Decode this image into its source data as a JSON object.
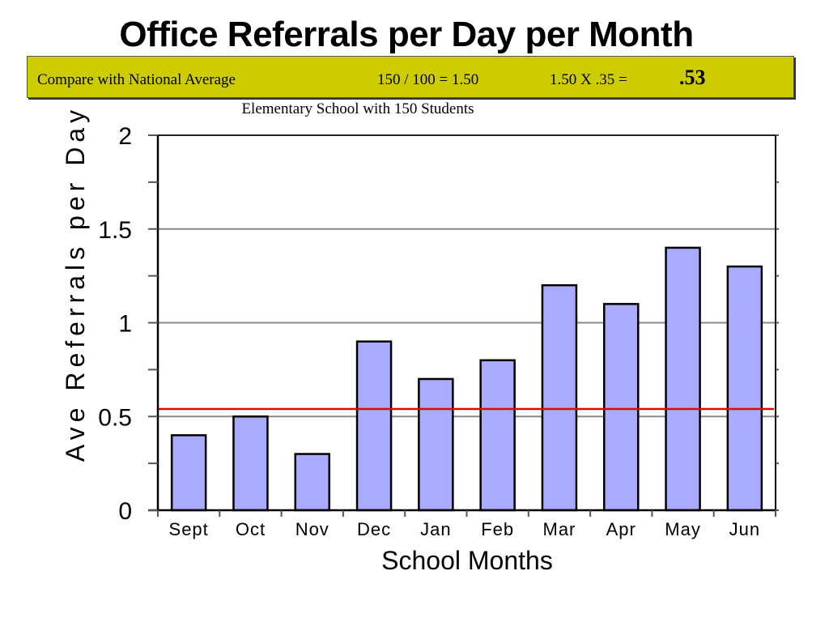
{
  "slide": {
    "title": "Office Referrals per Day per Month"
  },
  "comparison": {
    "label": "Compare with National Average",
    "calc_ratio": "150 / 100  = 1.50",
    "calc_product": "1.50 X  .35  =",
    "result": ".53",
    "box_color": "#cccc00"
  },
  "chart_data": {
    "type": "bar",
    "title": "",
    "subtitle": "Elementary School with 150 Students",
    "xlabel": "School Months",
    "ylabel": "Ave Referrals per Day",
    "categories": [
      "Sept",
      "Oct",
      "Nov",
      "Dec",
      "Jan",
      "Feb",
      "Mar",
      "Apr",
      "May",
      "Jun"
    ],
    "values": [
      0.4,
      0.5,
      0.3,
      0.9,
      0.7,
      0.8,
      1.2,
      1.1,
      1.4,
      1.3
    ],
    "ylim": [
      0,
      2
    ],
    "yticks": [
      0,
      0.5,
      1,
      1.5,
      2
    ],
    "ytick_labels": [
      "0",
      "0.5",
      "1",
      "1.5",
      "2"
    ],
    "reference_line": {
      "value": 0.54,
      "color": "#e00000"
    },
    "bar_color": "#aaaaff",
    "grid": true,
    "legend": "none"
  }
}
